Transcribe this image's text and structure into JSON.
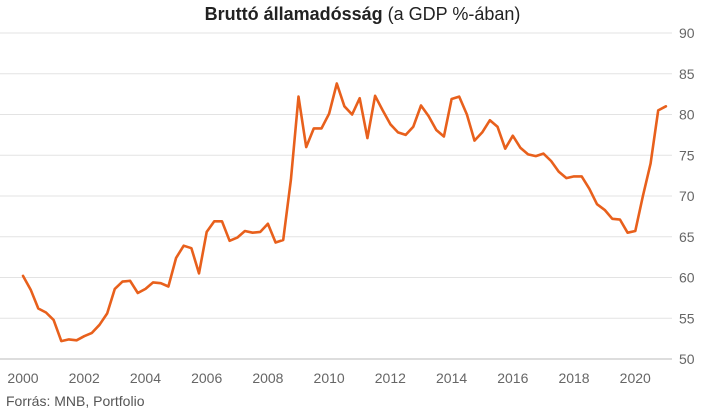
{
  "chart_data": {
    "type": "line",
    "title": "Bruttó államadósság",
    "subtitle": "(a GDP %-ában)",
    "source": "Forrás: MNB, Portfolio",
    "xlabel": "",
    "ylabel": "",
    "xlim": [
      2000,
      2021.2
    ],
    "ylim": [
      50,
      90
    ],
    "x_ticks": [
      "2000",
      "2002",
      "2004",
      "2006",
      "2008",
      "2010",
      "2012",
      "2014",
      "2016",
      "2018",
      "2020"
    ],
    "y_ticks": [
      "50",
      "55",
      "60",
      "65",
      "70",
      "75",
      "80",
      "85",
      "90"
    ],
    "grid": true,
    "legend": "none",
    "color": "#e8601c",
    "series": [
      {
        "x": [
          2000.0,
          2000.25,
          2000.5,
          2000.75,
          2001.0,
          2001.25,
          2001.5,
          2001.75,
          2002.0,
          2002.25,
          2002.5,
          2002.75,
          2003.0,
          2003.25,
          2003.5,
          2003.75,
          2004.0,
          2004.25,
          2004.5,
          2004.75,
          2005.0,
          2005.25,
          2005.5,
          2005.75,
          2006.0,
          2006.25,
          2006.5,
          2006.75,
          2007.0,
          2007.25,
          2007.5,
          2007.75,
          2008.0,
          2008.25,
          2008.5,
          2008.75,
          2009.0,
          2009.25,
          2009.5,
          2009.75,
          2010.0,
          2010.25,
          2010.5,
          2010.75,
          2011.0,
          2011.25,
          2011.5,
          2011.75,
          2012.0,
          2012.25,
          2012.5,
          2012.75,
          2013.0,
          2013.25,
          2013.5,
          2013.75,
          2014.0,
          2014.25,
          2014.5,
          2014.75,
          2015.0,
          2015.25,
          2015.5,
          2015.75,
          2016.0,
          2016.25,
          2016.5,
          2016.75,
          2017.0,
          2017.25,
          2017.5,
          2017.75,
          2018.0,
          2018.25,
          2018.5,
          2018.75,
          2019.0,
          2019.25,
          2019.5,
          2019.75,
          2020.0,
          2020.25,
          2020.5,
          2020.75,
          2021.0
        ],
        "values": [
          60.2,
          58.5,
          56.2,
          55.7,
          54.8,
          52.2,
          52.4,
          52.3,
          52.8,
          53.2,
          54.2,
          55.6,
          58.6,
          59.5,
          59.6,
          58.1,
          58.6,
          59.4,
          59.3,
          58.9,
          62.4,
          63.9,
          63.6,
          60.5,
          65.6,
          66.9,
          66.9,
          64.5,
          64.9,
          65.7,
          65.5,
          65.6,
          66.6,
          64.3,
          64.6,
          72.0,
          82.2,
          76.0,
          78.3,
          78.3,
          80.1,
          83.8,
          81.0,
          80.0,
          82.0,
          77.1,
          82.3,
          80.5,
          78.8,
          77.8,
          77.5,
          78.5,
          81.1,
          79.8,
          78.1,
          77.3,
          81.9,
          82.2,
          80.0,
          76.8,
          77.8,
          79.3,
          78.5,
          75.8,
          77.4,
          75.9,
          75.1,
          74.9,
          75.2,
          74.3,
          73.0,
          72.2,
          72.4,
          72.4,
          70.9,
          69.0,
          68.3,
          67.2,
          67.1,
          65.5,
          65.7,
          70.0,
          74.0,
          80.5,
          81.0
        ]
      }
    ]
  }
}
